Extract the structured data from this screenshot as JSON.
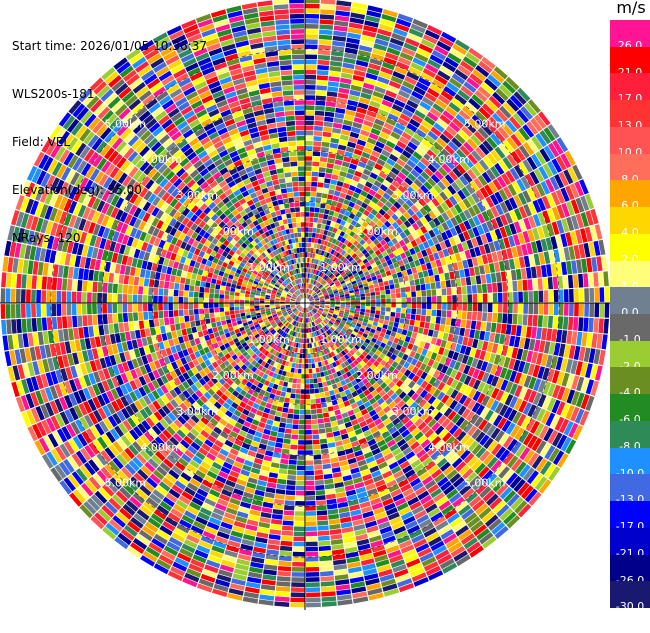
{
  "header": {
    "start_time": "Start time: 2026/01/05 10:36:37",
    "instrument": "WLS200s-181",
    "field": "Field: VEL",
    "elevation": "Elevation(deg): 35.00",
    "nrays": "NRays: 120"
  },
  "colorbar": {
    "unit": "m/s",
    "levels": [
      {
        "label": "26.0",
        "color": "#ff1493"
      },
      {
        "label": "21.0",
        "color": "#ff0000"
      },
      {
        "label": "17.0",
        "color": "#ff1f3a"
      },
      {
        "label": "13.0",
        "color": "#ff3333"
      },
      {
        "label": "10.0",
        "color": "#ff5252"
      },
      {
        "label": "8.0",
        "color": "#ff6e5a"
      },
      {
        "label": "6.0",
        "color": "#ffa500"
      },
      {
        "label": "4.0",
        "color": "#ffd700"
      },
      {
        "label": "2.0",
        "color": "#ffff00"
      },
      {
        "label": "1.0",
        "color": "#fffe7a"
      },
      {
        "label": "0.0",
        "color": "#708090"
      },
      {
        "label": "-1.0",
        "color": "#696969"
      },
      {
        "label": "-2.0",
        "color": "#9acd32"
      },
      {
        "label": "-4.0",
        "color": "#6b8e23"
      },
      {
        "label": "-6.0",
        "color": "#228b22"
      },
      {
        "label": "-8.0",
        "color": "#2e8b57"
      },
      {
        "label": "-10.0",
        "color": "#1e90ff"
      },
      {
        "label": "-13.0",
        "color": "#4169e1"
      },
      {
        "label": "-17.0",
        "color": "#0000ff"
      },
      {
        "label": "-21.0",
        "color": "#0000cd"
      },
      {
        "label": "-26.0",
        "color": "#00008b"
      },
      {
        "label": "-30.0",
        "color": "#191970"
      }
    ]
  },
  "chart_data": {
    "type": "heatmap",
    "projection": "polar",
    "field": "VEL",
    "units": "m/s",
    "elevation_deg": 35.0,
    "nrays": 120,
    "max_range_km": 6.0,
    "range_rings_km": [
      1.0,
      2.0,
      3.0,
      4.0,
      5.0
    ],
    "ring_labels": [
      "1.00km",
      "2.00km",
      "3.00km",
      "4.00km",
      "5.00km"
    ],
    "crosshair": true,
    "note": "velocity values vary pseudo-randomly across all gates and azimuths"
  }
}
